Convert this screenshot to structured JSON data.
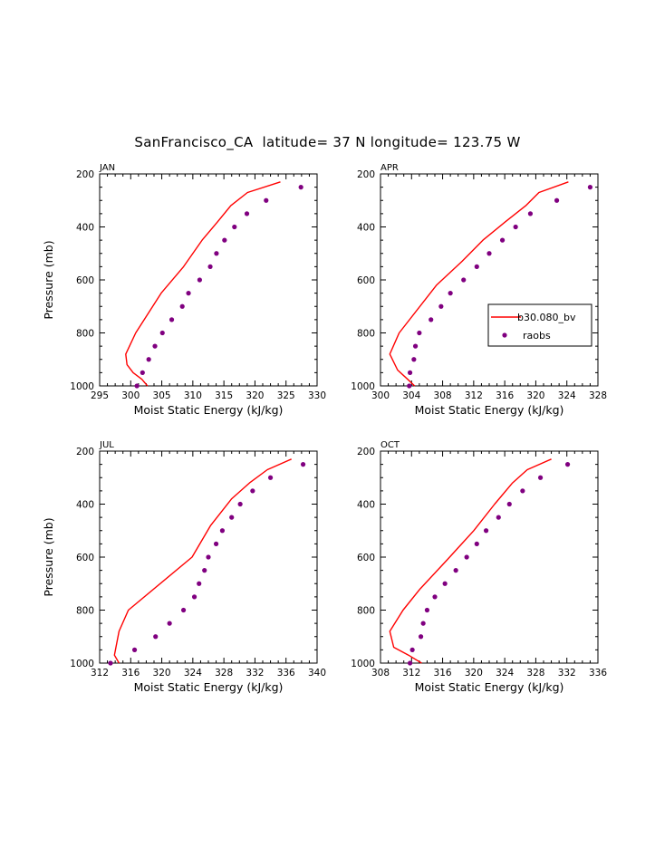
{
  "title": "SanFrancisco_CA  latitude= 37 N longitude= 123.75 W",
  "colors": {
    "model": "#ff0000",
    "obs": "#800080",
    "axis": "#000000"
  },
  "chart_data": [
    {
      "type": "line",
      "panel": "JAN",
      "xlabel": "Moist Static Energy (kJ/kg)",
      "ylabel": "Pressure (mb)",
      "xlim": [
        295,
        330
      ],
      "ylim": [
        1000,
        200
      ],
      "xticks": [
        295,
        300,
        305,
        310,
        315,
        320,
        325,
        330
      ],
      "yticks": [
        200,
        400,
        600,
        800,
        1000
      ],
      "series": [
        {
          "kind": "line",
          "x": [
            324.1,
            318.8,
            316.1,
            314.0,
            311.5,
            308.5,
            304.9,
            300.8,
            299.2,
            299.4,
            300.4,
            301.8,
            302.7
          ],
          "y": [
            230,
            270,
            320,
            380,
            450,
            550,
            650,
            800,
            880,
            920,
            950,
            975,
            1000
          ]
        },
        {
          "kind": "scatter",
          "x": [
            327.4,
            321.8,
            318.7,
            316.7,
            315.1,
            313.8,
            312.8,
            311.1,
            309.3,
            308.3,
            306.6,
            305.1,
            303.9,
            302.9,
            301.9,
            301.0
          ],
          "y": [
            250,
            300,
            350,
            400,
            450,
            500,
            550,
            600,
            650,
            700,
            750,
            800,
            850,
            900,
            950,
            1000
          ]
        }
      ]
    },
    {
      "type": "line",
      "panel": "APR",
      "xlabel": "Moist Static Energy (kJ/kg)",
      "ylabel": "",
      "xlim": [
        300,
        328
      ],
      "ylim": [
        1000,
        200
      ],
      "xticks": [
        300,
        304,
        308,
        312,
        316,
        320,
        324,
        328
      ],
      "yticks": [
        200,
        400,
        600,
        800,
        1000
      ],
      "legend": {
        "position": "right",
        "labels": [
          "b30.080_bv",
          "raobs"
        ]
      },
      "series": [
        {
          "name": "b30.080_bv",
          "kind": "line",
          "x": [
            324.2,
            320.4,
            318.7,
            316.1,
            313.2,
            310.5,
            307.2,
            302.4,
            301.2,
            302.2,
            303.5,
            304.4
          ],
          "y": [
            230,
            270,
            320,
            380,
            450,
            530,
            620,
            800,
            880,
            940,
            975,
            1000
          ]
        },
        {
          "name": "raobs",
          "kind": "scatter",
          "x": [
            327.0,
            322.7,
            319.3,
            317.4,
            315.7,
            314.0,
            312.4,
            310.7,
            309.0,
            307.8,
            306.5,
            305.0,
            304.5,
            304.3,
            303.8,
            303.7
          ],
          "y": [
            250,
            300,
            350,
            400,
            450,
            500,
            550,
            600,
            650,
            700,
            750,
            800,
            850,
            900,
            950,
            1000
          ]
        }
      ]
    },
    {
      "type": "line",
      "panel": "JUL",
      "xlabel": "Moist Static Energy (kJ/kg)",
      "ylabel": "Pressure (mb)",
      "xlim": [
        312,
        340
      ],
      "ylim": [
        1000,
        200
      ],
      "xticks": [
        312,
        316,
        320,
        324,
        328,
        332,
        336,
        340
      ],
      "yticks": [
        200,
        400,
        600,
        800,
        1000
      ],
      "series": [
        {
          "kind": "line",
          "x": [
            336.7,
            333.6,
            331.3,
            329.0,
            326.3,
            323.9,
            315.7,
            314.5,
            313.9,
            314.5
          ],
          "y": [
            230,
            270,
            320,
            380,
            480,
            600,
            800,
            880,
            970,
            1000
          ]
        },
        {
          "kind": "scatter",
          "x": [
            338.2,
            334.0,
            331.7,
            330.1,
            329.0,
            327.8,
            327.0,
            326.0,
            325.5,
            324.8,
            324.2,
            322.8,
            321.0,
            319.2,
            316.5,
            313.4
          ],
          "y": [
            250,
            300,
            350,
            400,
            450,
            500,
            550,
            600,
            650,
            700,
            750,
            800,
            850,
            900,
            950,
            1000
          ]
        }
      ]
    },
    {
      "type": "line",
      "panel": "OCT",
      "xlabel": "Moist Static Energy (kJ/kg)",
      "ylabel": "",
      "xlim": [
        308,
        336
      ],
      "ylim": [
        1000,
        200
      ],
      "xticks": [
        308,
        312,
        316,
        320,
        324,
        328,
        332,
        336
      ],
      "yticks": [
        200,
        400,
        600,
        800,
        1000
      ],
      "series": [
        {
          "kind": "line",
          "x": [
            330.0,
            326.9,
            325.0,
            322.7,
            320.0,
            316.6,
            313.1,
            310.9,
            309.2,
            309.7,
            311.6,
            313.3
          ],
          "y": [
            230,
            270,
            320,
            400,
            500,
            610,
            720,
            800,
            880,
            940,
            970,
            1000
          ]
        },
        {
          "kind": "scatter",
          "x": [
            332.1,
            328.6,
            326.3,
            324.6,
            323.2,
            321.6,
            320.4,
            319.1,
            317.7,
            316.3,
            315.0,
            314.0,
            313.5,
            313.2,
            312.1,
            311.8
          ],
          "y": [
            250,
            300,
            350,
            400,
            450,
            500,
            550,
            600,
            650,
            700,
            750,
            800,
            850,
            900,
            950,
            1000
          ]
        }
      ]
    }
  ]
}
